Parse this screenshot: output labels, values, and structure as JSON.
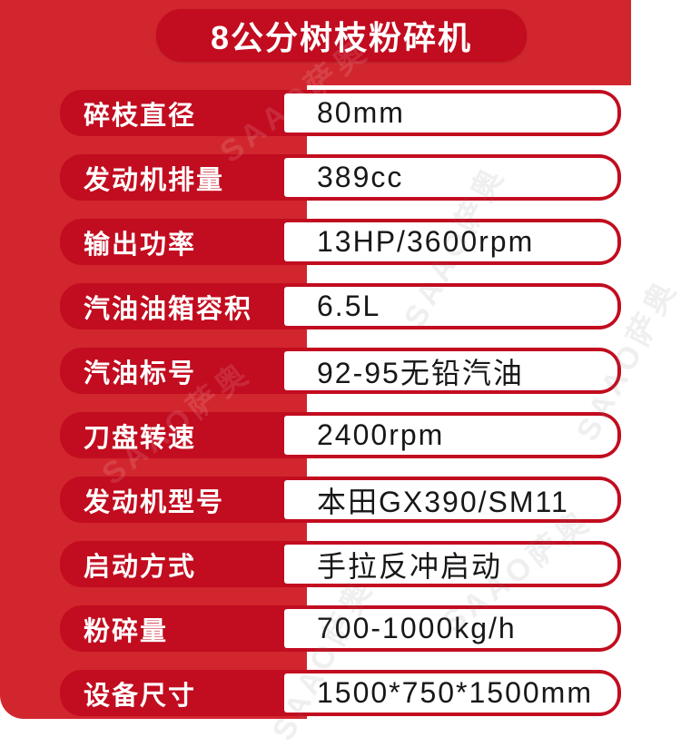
{
  "banner": {
    "title": "8公分树枝粉碎机"
  },
  "colors": {
    "page_red": "#d2262e",
    "dark_red": "#c20c1f",
    "value_text": "#171717",
    "white": "#ffffff"
  },
  "watermark": {
    "text": "SAAO萨奥"
  },
  "specs": [
    {
      "label": "碎枝直径",
      "value": "80mm"
    },
    {
      "label": "发动机排量",
      "value": "389cc"
    },
    {
      "label": "输出功率",
      "value": "13HP/3600rpm"
    },
    {
      "label": "汽油油箱容积",
      "value": "6.5L"
    },
    {
      "label": "汽油标号",
      "value": "92-95无铅汽油"
    },
    {
      "label": "刀盘转速",
      "value": "2400rpm"
    },
    {
      "label": "发动机型号",
      "value": "本田GX390/SM11"
    },
    {
      "label": "启动方式",
      "value": "手拉反冲启动"
    },
    {
      "label": "粉碎量",
      "value": "700-1000kg/h"
    },
    {
      "label": "设备尺寸",
      "value": "1500*750*1500mm"
    }
  ]
}
